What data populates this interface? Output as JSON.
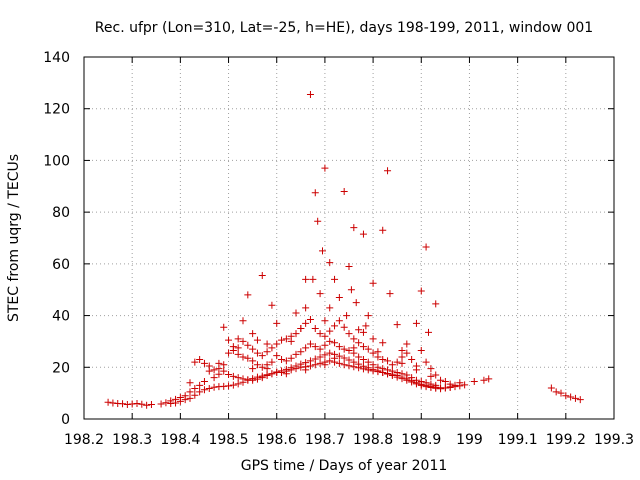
{
  "chart_data": {
    "type": "scatter",
    "title": "Rec. ufpr (Lon=310, Lat=-25, h=HE), days 198-199, 2011, window 001",
    "xlabel": "GPS time / Days of year 2011",
    "ylabel": "STEC from uqrg / TECUs",
    "xlim": [
      198.2,
      199.3
    ],
    "ylim": [
      0,
      140
    ],
    "grid": true,
    "marker": "plus",
    "marker_color": "#cc0000",
    "xticks": [
      {
        "value": 198.2,
        "label": "198.2"
      },
      {
        "value": 198.3,
        "label": "198.3"
      },
      {
        "value": 198.4,
        "label": "198.4"
      },
      {
        "value": 198.5,
        "label": "198.5"
      },
      {
        "value": 198.6,
        "label": "198.6"
      },
      {
        "value": 198.7,
        "label": "198.7"
      },
      {
        "value": 198.8,
        "label": "198.8"
      },
      {
        "value": 198.9,
        "label": "198.9"
      },
      {
        "value": 199.0,
        "label": "199"
      },
      {
        "value": 199.1,
        "label": "199.1"
      },
      {
        "value": 199.2,
        "label": "199.2"
      },
      {
        "value": 199.3,
        "label": "199.3"
      }
    ],
    "yticks": [
      {
        "value": 0,
        "label": "0"
      },
      {
        "value": 20,
        "label": "20"
      },
      {
        "value": 40,
        "label": "40"
      },
      {
        "value": 60,
        "label": "60"
      },
      {
        "value": 80,
        "label": "80"
      },
      {
        "value": 100,
        "label": "100"
      },
      {
        "value": 120,
        "label": "120"
      },
      {
        "value": 140,
        "label": "140"
      }
    ],
    "points": [
      [
        198.25,
        6.5
      ],
      [
        198.26,
        6.2
      ],
      [
        198.27,
        6.0
      ],
      [
        198.28,
        5.9
      ],
      [
        198.29,
        5.6
      ],
      [
        198.3,
        5.8
      ],
      [
        198.31,
        6.0
      ],
      [
        198.32,
        5.7
      ],
      [
        198.33,
        5.3
      ],
      [
        198.34,
        5.6
      ],
      [
        198.36,
        5.8
      ],
      [
        198.37,
        6.3
      ],
      [
        198.38,
        7.0
      ],
      [
        198.39,
        7.6
      ],
      [
        198.4,
        8.3
      ],
      [
        198.41,
        9.0
      ],
      [
        198.42,
        10.5
      ],
      [
        198.43,
        11.8
      ],
      [
        198.44,
        13.0
      ],
      [
        198.45,
        14.5
      ],
      [
        198.47,
        16.0
      ],
      [
        198.48,
        17.3
      ],
      [
        198.49,
        18.5
      ],
      [
        198.5,
        17.2
      ],
      [
        198.51,
        16.5
      ],
      [
        198.52,
        16.0
      ],
      [
        198.53,
        15.5
      ],
      [
        198.54,
        15.2
      ],
      [
        198.55,
        15.0
      ],
      [
        198.56,
        15.4
      ],
      [
        198.57,
        16.0
      ],
      [
        198.58,
        16.8
      ],
      [
        198.59,
        17.5
      ],
      [
        198.6,
        18.2
      ],
      [
        198.61,
        18.0
      ],
      [
        198.62,
        18.5
      ],
      [
        198.63,
        19.0
      ],
      [
        198.64,
        19.5
      ],
      [
        198.65,
        20.0
      ],
      [
        198.66,
        20.2
      ],
      [
        198.67,
        20.5
      ],
      [
        198.68,
        21.0
      ],
      [
        198.69,
        21.5
      ],
      [
        198.7,
        22.0
      ],
      [
        198.71,
        22.5
      ],
      [
        198.72,
        22.0
      ],
      [
        198.73,
        21.5
      ],
      [
        198.74,
        21.0
      ],
      [
        198.75,
        20.6
      ],
      [
        198.76,
        20.2
      ],
      [
        198.77,
        19.8
      ],
      [
        198.78,
        19.4
      ],
      [
        198.79,
        19.0
      ],
      [
        198.8,
        18.6
      ],
      [
        198.81,
        18.3
      ],
      [
        198.82,
        18.0
      ],
      [
        198.83,
        17.6
      ],
      [
        198.84,
        17.3
      ],
      [
        198.85,
        16.8
      ],
      [
        198.86,
        16.2
      ],
      [
        198.87,
        15.5
      ],
      [
        198.88,
        14.8
      ],
      [
        198.89,
        14.0
      ],
      [
        198.9,
        13.4
      ],
      [
        198.91,
        13.0
      ],
      [
        198.92,
        12.6
      ],
      [
        198.93,
        12.3
      ],
      [
        198.94,
        12.1
      ],
      [
        198.95,
        12.0
      ],
      [
        198.96,
        12.2
      ],
      [
        198.97,
        12.5
      ],
      [
        198.98,
        12.8
      ],
      [
        198.99,
        13.2
      ],
      [
        198.38,
        6.0
      ],
      [
        198.39,
        6.2
      ],
      [
        198.4,
        6.8
      ],
      [
        198.41,
        7.5
      ],
      [
        198.42,
        8.0
      ],
      [
        198.43,
        9.2
      ],
      [
        198.44,
        10.5
      ],
      [
        198.45,
        11.3
      ],
      [
        198.46,
        11.8
      ],
      [
        198.47,
        12.3
      ],
      [
        198.48,
        12.5
      ],
      [
        198.49,
        12.6
      ],
      [
        198.5,
        12.8
      ],
      [
        198.51,
        13.1
      ],
      [
        198.52,
        13.6
      ],
      [
        198.53,
        14.2
      ],
      [
        198.54,
        15.0
      ],
      [
        198.55,
        15.6
      ],
      [
        198.56,
        16.2
      ],
      [
        198.57,
        16.6
      ],
      [
        198.58,
        17.1
      ],
      [
        198.59,
        17.5
      ],
      [
        198.6,
        18.0
      ],
      [
        198.61,
        18.6
      ],
      [
        198.62,
        19.2
      ],
      [
        198.63,
        19.8
      ],
      [
        198.64,
        20.5
      ],
      [
        198.65,
        21.2
      ],
      [
        198.66,
        21.8
      ],
      [
        198.67,
        22.5
      ],
      [
        198.68,
        23.2
      ],
      [
        198.69,
        24.0
      ],
      [
        198.7,
        24.8
      ],
      [
        198.71,
        25.5
      ],
      [
        198.72,
        25.0
      ],
      [
        198.73,
        24.3
      ],
      [
        198.74,
        23.6
      ],
      [
        198.75,
        22.8
      ],
      [
        198.76,
        22.0
      ],
      [
        198.77,
        21.2
      ],
      [
        198.78,
        20.4
      ],
      [
        198.79,
        19.8
      ],
      [
        198.8,
        19.2
      ],
      [
        198.81,
        18.6
      ],
      [
        198.82,
        18.0
      ],
      [
        198.83,
        17.4
      ],
      [
        198.84,
        16.8
      ],
      [
        198.85,
        16.2
      ],
      [
        198.86,
        15.6
      ],
      [
        198.87,
        15.0
      ],
      [
        198.88,
        14.3
      ],
      [
        198.89,
        13.6
      ],
      [
        198.9,
        13.0
      ],
      [
        198.91,
        12.5
      ],
      [
        198.92,
        12.2
      ],
      [
        198.93,
        11.9
      ],
      [
        198.94,
        11.7
      ],
      [
        198.95,
        12.0
      ],
      [
        198.96,
        12.4
      ],
      [
        198.97,
        13.0
      ],
      [
        198.44,
        23.0
      ],
      [
        198.45,
        21.5
      ],
      [
        198.46,
        20.5
      ],
      [
        198.47,
        19.0
      ],
      [
        198.48,
        19.5
      ],
      [
        198.49,
        21.0
      ],
      [
        198.5,
        25.5
      ],
      [
        198.51,
        26.5
      ],
      [
        198.52,
        25.0
      ],
      [
        198.53,
        24.0
      ],
      [
        198.54,
        23.5
      ],
      [
        198.55,
        22.5
      ],
      [
        198.56,
        21.0
      ],
      [
        198.57,
        20.0
      ],
      [
        198.58,
        19.5
      ],
      [
        198.59,
        22.0
      ],
      [
        198.6,
        24.5
      ],
      [
        198.61,
        23.0
      ],
      [
        198.62,
        22.5
      ],
      [
        198.63,
        23.5
      ],
      [
        198.64,
        25.0
      ],
      [
        198.65,
        26.0
      ],
      [
        198.66,
        27.5
      ],
      [
        198.67,
        29.0
      ],
      [
        198.68,
        28.0
      ],
      [
        198.69,
        27.0
      ],
      [
        198.7,
        28.5
      ],
      [
        198.71,
        30.0
      ],
      [
        198.72,
        29.5
      ],
      [
        198.73,
        28.0
      ],
      [
        198.74,
        27.0
      ],
      [
        198.75,
        26.5
      ],
      [
        198.76,
        25.5
      ],
      [
        198.77,
        24.0
      ],
      [
        198.78,
        23.0
      ],
      [
        198.79,
        22.0
      ],
      [
        198.8,
        21.0
      ],
      [
        198.81,
        20.0
      ],
      [
        198.82,
        19.5
      ],
      [
        198.83,
        19.0
      ],
      [
        198.84,
        18.5
      ],
      [
        198.85,
        18.0
      ],
      [
        198.86,
        17.5
      ],
      [
        198.87,
        17.0
      ],
      [
        198.88,
        16.0
      ],
      [
        198.89,
        15.0
      ],
      [
        198.9,
        14.5
      ],
      [
        198.91,
        14.0
      ],
      [
        198.92,
        13.5
      ],
      [
        198.93,
        13.0
      ],
      [
        198.5,
        30.5
      ],
      [
        198.51,
        28.0
      ],
      [
        198.52,
        31.0
      ],
      [
        198.53,
        30.0
      ],
      [
        198.54,
        28.5
      ],
      [
        198.55,
        27.0
      ],
      [
        198.56,
        25.5
      ],
      [
        198.57,
        24.5
      ],
      [
        198.58,
        26.0
      ],
      [
        198.59,
        27.5
      ],
      [
        198.6,
        29.0
      ],
      [
        198.61,
        30.5
      ],
      [
        198.62,
        31.0
      ],
      [
        198.63,
        30.0
      ],
      [
        198.64,
        33.0
      ],
      [
        198.65,
        35.0
      ],
      [
        198.66,
        37.0
      ],
      [
        198.67,
        38.5
      ],
      [
        198.68,
        35.0
      ],
      [
        198.69,
        33.0
      ],
      [
        198.7,
        32.0
      ],
      [
        198.71,
        34.0
      ],
      [
        198.72,
        36.0
      ],
      [
        198.73,
        38.0
      ],
      [
        198.74,
        35.5
      ],
      [
        198.75,
        33.0
      ],
      [
        198.76,
        31.0
      ],
      [
        198.77,
        29.5
      ],
      [
        198.78,
        28.0
      ],
      [
        198.79,
        27.0
      ],
      [
        198.8,
        25.5
      ],
      [
        198.81,
        24.0
      ],
      [
        198.82,
        23.0
      ],
      [
        198.83,
        22.5
      ],
      [
        198.84,
        21.0
      ],
      [
        198.85,
        22.0
      ],
      [
        198.86,
        24.0
      ],
      [
        198.87,
        25.5
      ],
      [
        198.88,
        23.0
      ],
      [
        198.89,
        20.5
      ],
      [
        198.9,
        26.5
      ],
      [
        198.91,
        22.0
      ],
      [
        198.92,
        19.5
      ],
      [
        198.93,
        17.0
      ],
      [
        198.94,
        15.0
      ],
      [
        198.95,
        14.5
      ],
      [
        198.96,
        13.5
      ],
      [
        198.97,
        13.0
      ],
      [
        198.98,
        14.0
      ],
      [
        198.49,
        35.5
      ],
      [
        198.53,
        38.0
      ],
      [
        198.54,
        48.0
      ],
      [
        198.55,
        33.0
      ],
      [
        198.56,
        30.5
      ],
      [
        198.57,
        55.5
      ],
      [
        198.58,
        29.0
      ],
      [
        198.59,
        44.0
      ],
      [
        198.6,
        37.0
      ],
      [
        198.63,
        32.0
      ],
      [
        198.64,
        41.0
      ],
      [
        198.65,
        35.0
      ],
      [
        198.66,
        54.0
      ],
      [
        198.66,
        43.0
      ],
      [
        198.67,
        125.5
      ],
      [
        198.675,
        54.0
      ],
      [
        198.68,
        87.5
      ],
      [
        198.685,
        76.5
      ],
      [
        198.69,
        48.5
      ],
      [
        198.695,
        65.0
      ],
      [
        198.7,
        97.0
      ],
      [
        198.7,
        38.0
      ],
      [
        198.71,
        60.5
      ],
      [
        198.71,
        43.0
      ],
      [
        198.72,
        54.0
      ],
      [
        198.73,
        47.0
      ],
      [
        198.74,
        88.0
      ],
      [
        198.745,
        40.0
      ],
      [
        198.75,
        59.0
      ],
      [
        198.755,
        50.0
      ],
      [
        198.76,
        74.0
      ],
      [
        198.765,
        45.0
      ],
      [
        198.77,
        34.5
      ],
      [
        198.78,
        71.5
      ],
      [
        198.785,
        36.0
      ],
      [
        198.79,
        40.0
      ],
      [
        198.8,
        52.5
      ],
      [
        198.81,
        26.0
      ],
      [
        198.82,
        73.0
      ],
      [
        198.83,
        96.0
      ],
      [
        198.835,
        48.5
      ],
      [
        198.85,
        36.5
      ],
      [
        198.86,
        26.5
      ],
      [
        198.87,
        29.0
      ],
      [
        198.89,
        37.0
      ],
      [
        198.9,
        49.5
      ],
      [
        198.91,
        66.5
      ],
      [
        198.915,
        33.5
      ],
      [
        198.93,
        44.5
      ],
      [
        198.42,
        14.0
      ],
      [
        198.43,
        22.0
      ],
      [
        198.46,
        18.5
      ],
      [
        198.48,
        21.5
      ],
      [
        198.52,
        27.5
      ],
      [
        198.55,
        19.5
      ],
      [
        198.58,
        21.0
      ],
      [
        198.62,
        17.5
      ],
      [
        198.66,
        19.0
      ],
      [
        198.7,
        21.0
      ],
      [
        198.72,
        23.5
      ],
      [
        198.76,
        27.5
      ],
      [
        198.78,
        33.5
      ],
      [
        198.8,
        31.0
      ],
      [
        198.82,
        29.5
      ],
      [
        198.86,
        21.5
      ],
      [
        198.89,
        19.0
      ],
      [
        198.92,
        16.5
      ],
      [
        199.01,
        14.5
      ],
      [
        199.03,
        15.0
      ],
      [
        199.04,
        15.5
      ],
      [
        199.17,
        12.0
      ],
      [
        199.18,
        10.5
      ],
      [
        199.19,
        10.0
      ],
      [
        199.2,
        9.0
      ],
      [
        199.21,
        8.5
      ],
      [
        199.22,
        8.0
      ],
      [
        199.23,
        7.5
      ]
    ]
  }
}
